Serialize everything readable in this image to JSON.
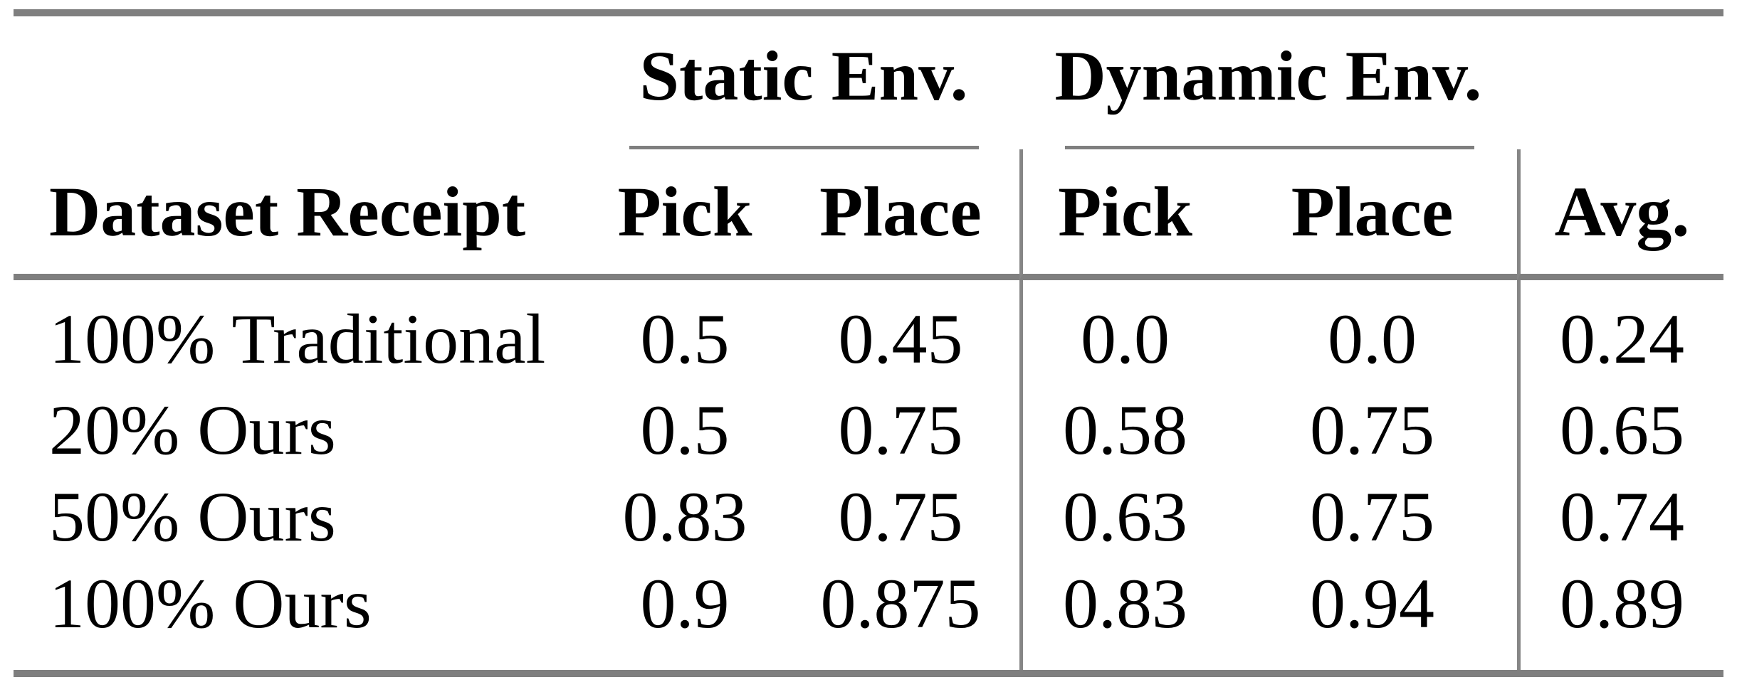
{
  "page": {
    "background_color": "#ffffff",
    "text_color": "#000000"
  },
  "colors": {
    "heavy_rule": "#7f7f7f",
    "vertical_rule": "#868686"
  },
  "table": {
    "groups": {
      "static": "Static Env.",
      "dynamic": "Dynamic Env."
    },
    "headers": {
      "dataset": "Dataset Receipt",
      "static_pick": "Pick",
      "static_place": "Place",
      "dynamic_pick": "Pick",
      "dynamic_place": "Place",
      "avg": "Avg."
    },
    "rows": [
      {
        "dataset": "100% Traditional",
        "static_pick": "0.5",
        "static_place": "0.45",
        "dynamic_pick": "0.0",
        "dynamic_place": "0.0",
        "avg": "0.24"
      },
      {
        "dataset": "20% Ours",
        "static_pick": "0.5",
        "static_place": "0.75",
        "dynamic_pick": "0.58",
        "dynamic_place": "0.75",
        "avg": "0.65"
      },
      {
        "dataset": "50% Ours",
        "static_pick": "0.83",
        "static_place": "0.75",
        "dynamic_pick": "0.63",
        "dynamic_place": "0.75",
        "avg": "0.74"
      },
      {
        "dataset": "100% Ours",
        "static_pick": "0.9",
        "static_place": "0.875",
        "dynamic_pick": "0.83",
        "dynamic_place": "0.94",
        "avg": "0.89"
      }
    ]
  }
}
